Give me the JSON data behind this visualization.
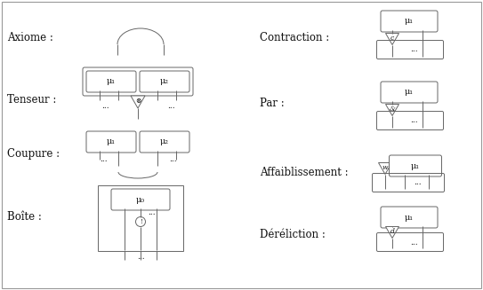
{
  "bg_color": "#ffffff",
  "line_color": "#666666",
  "text_color": "#111111",
  "labels": {
    "axiome": "Axiome :",
    "tenseur": "Tenseur :",
    "coupure": "Coupure :",
    "boite": "Boîte :",
    "contraction": "Contraction :",
    "par": "Par :",
    "affaiblissement": "Affaiblissement :",
    "dereliction": "Déréliction :"
  },
  "mu1": "μ₁",
  "mu2": "μ₂",
  "mu0": "μ₀",
  "dots": "...",
  "node_c": "c",
  "node_par": "&",
  "node_w": "w",
  "node_d": "d",
  "node_tensor": "⊗",
  "node_excl": "!"
}
